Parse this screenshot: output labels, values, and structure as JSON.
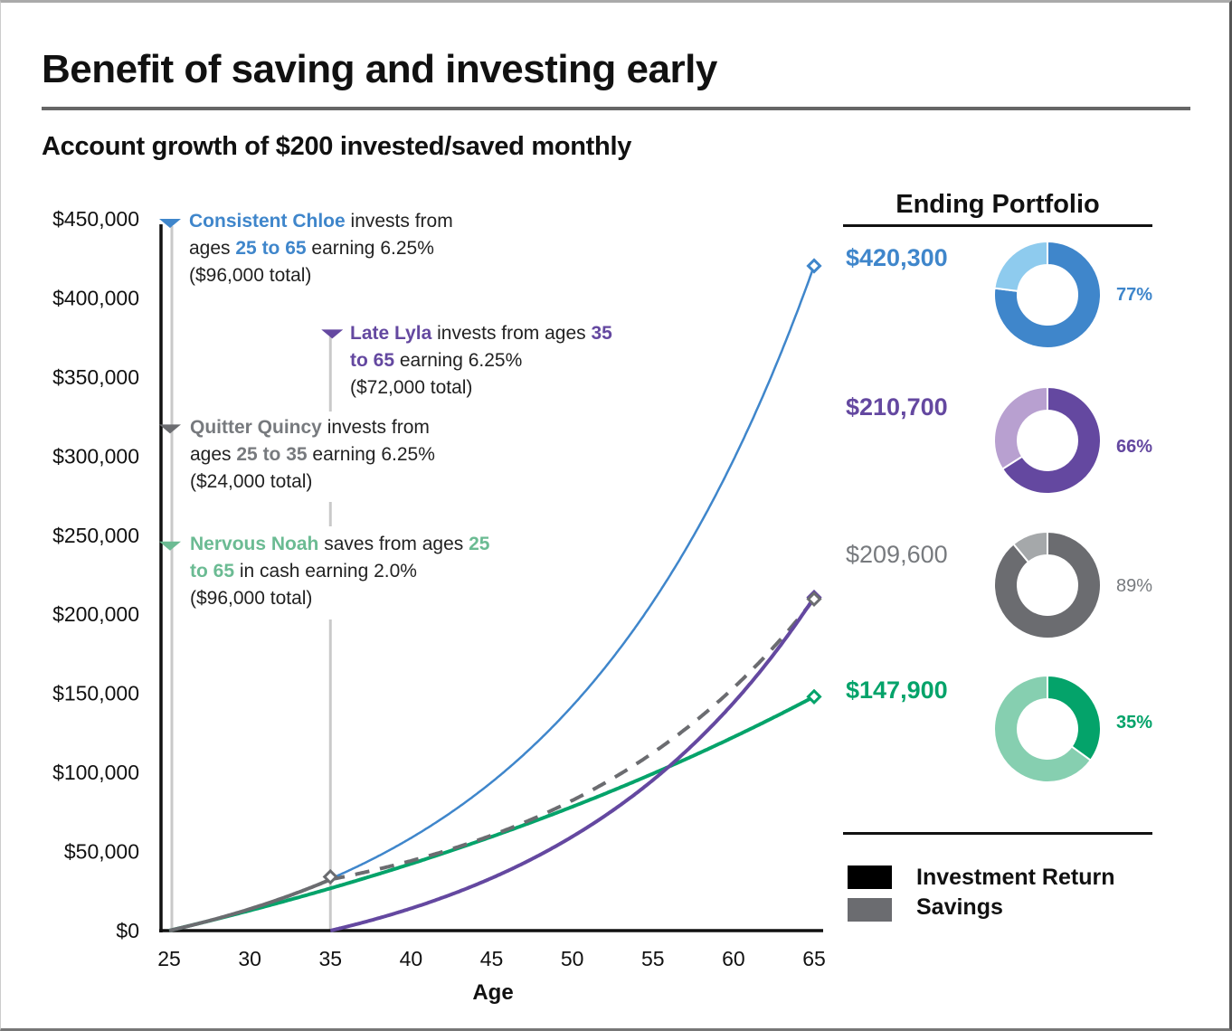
{
  "title": "Benefit of saving and investing early",
  "subtitle": "Account growth of $200 invested/saved monthly",
  "colors": {
    "chloe": "#3f86cb",
    "chloe_light": "#8ecbee",
    "lyla": "#6448a0",
    "lyla_light": "#b8a0d0",
    "quincy": "#6b6c70",
    "quincy_light": "#a5a8aa",
    "noah": "#04a36a",
    "noah_light": "#86cfb0",
    "noah_text": "#6bbb93",
    "quincy_text": "#777a7e",
    "axis": "#111111",
    "guide": "#c9c9c9"
  },
  "annotations": [
    {
      "key": "chloe",
      "name": "Consistent Chloe",
      "pre_range": " invests from ages ",
      "range": "25 to 65",
      "post_range": " earning 6.25%",
      "total": "($96,000 total)"
    },
    {
      "key": "lyla",
      "name": "Late Lyla",
      "pre_range": " invests from ages ",
      "range": "35 to 65",
      "post_range": " earning 6.25%",
      "total": "($72,000 total)"
    },
    {
      "key": "quincy",
      "name": "Quitter Quincy",
      "pre_range": " invests from ages ",
      "range": "25 to 35",
      "post_range": " earning 6.25%",
      "total": "($24,000 total)"
    },
    {
      "key": "noah",
      "name": "Nervous Noah",
      "pre_range": " saves from ages ",
      "range": "25 to 65",
      "post_range": " in cash earning 2.0%",
      "total": "($96,000 total)"
    }
  ],
  "panel": {
    "title": "Ending Portfolio",
    "items": [
      {
        "key": "chloe",
        "value": "$420,300",
        "investment_return_pct": 77,
        "pct_label": "77%"
      },
      {
        "key": "lyla",
        "value": "$210,700",
        "investment_return_pct": 66,
        "pct_label": "66%"
      },
      {
        "key": "quincy",
        "value": "$209,600",
        "investment_return_pct": 89,
        "pct_label": "89%"
      },
      {
        "key": "noah",
        "value": "$147,900",
        "investment_return_pct": 35,
        "pct_label": "35%"
      }
    ],
    "legend": [
      {
        "label": "Investment Return",
        "color": "#000000"
      },
      {
        "label": "Savings",
        "color": "#6b6c70"
      }
    ]
  },
  "chart_data": {
    "type": "line",
    "title": "Account growth of $200 invested/saved monthly",
    "xlabel": "Age",
    "ylabel": "",
    "xlim": [
      25,
      65
    ],
    "ylim": [
      0,
      450000
    ],
    "x_ticks": [
      25,
      30,
      35,
      40,
      45,
      50,
      55,
      60,
      65
    ],
    "x_tick_labels": [
      "25",
      "30",
      "35",
      "40",
      "45",
      "50",
      "55",
      "60",
      "65"
    ],
    "y_ticks": [
      0,
      50000,
      100000,
      150000,
      200000,
      250000,
      300000,
      350000,
      400000,
      450000
    ],
    "y_tick_labels": [
      "$0",
      "$50,000",
      "$100,000",
      "$150,000",
      "$200,000",
      "$250,000",
      "$300,000",
      "$350,000",
      "$400,000",
      "$450,000"
    ],
    "grid": false,
    "monthly_contribution": 200,
    "series": [
      {
        "name": "Consistent Chloe",
        "key": "chloe",
        "contribute_from": 25,
        "contribute_to": 65,
        "start": 25,
        "annual_rate": 0.0625,
        "end_value": 420300,
        "style": "solid"
      },
      {
        "name": "Late Lyla",
        "key": "lyla",
        "contribute_from": 35,
        "contribute_to": 65,
        "start": 35,
        "annual_rate": 0.0625,
        "end_value": 210700,
        "style": "solid"
      },
      {
        "name": "Quitter Quincy",
        "key": "quincy",
        "contribute_from": 25,
        "contribute_to": 35,
        "start": 25,
        "annual_rate": 0.0625,
        "end_value": 209600,
        "style": "solid-then-dashed"
      },
      {
        "name": "Nervous Noah",
        "key": "noah",
        "contribute_from": 25,
        "contribute_to": 65,
        "start": 25,
        "annual_rate": 0.02,
        "end_value": 147900,
        "style": "solid"
      }
    ],
    "markers": [
      {
        "key": "chloe",
        "age": 65,
        "value": 420300
      },
      {
        "key": "lyla",
        "age": 65,
        "value": 210700
      },
      {
        "key": "quincy",
        "age": 65,
        "value": 209600
      },
      {
        "key": "quincy",
        "age": 35,
        "value": 34000
      },
      {
        "key": "noah",
        "age": 65,
        "value": 147900
      }
    ],
    "annotation_pointers": [
      {
        "key": "chloe",
        "age": 25,
        "value": 450000
      },
      {
        "key": "lyla",
        "age": 35,
        "value": 380000
      },
      {
        "key": "quincy",
        "age": 25,
        "value": 320000
      },
      {
        "key": "noah",
        "age": 25,
        "value": 246000
      }
    ]
  }
}
